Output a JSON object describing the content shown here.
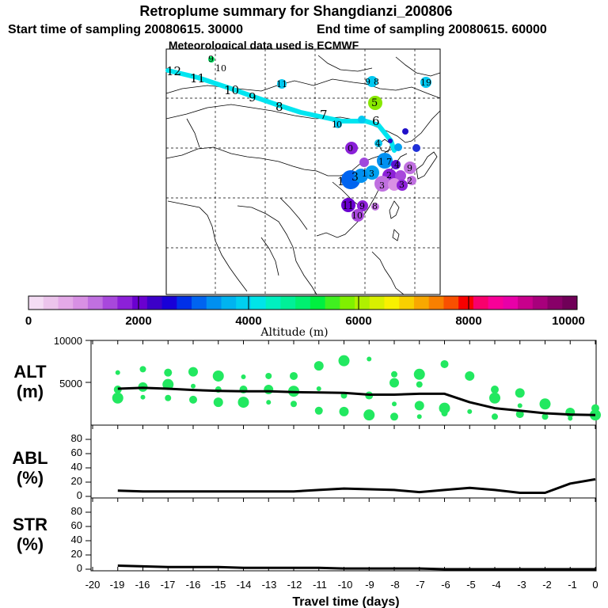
{
  "title": {
    "line1": "Retroplume summary for Shangdianzi_200806",
    "line2_start": "Start time of sampling 20080615. 30000",
    "line2_end": "End time of sampling 20080615. 60000",
    "line3": "Meteorological data used is ECMWF"
  },
  "map": {
    "labels": {
      "trajectory": [
        "12",
        "11",
        "10",
        "9",
        "8",
        "7",
        "6"
      ],
      "clusters": [
        "9",
        "10",
        "11",
        "19",
        "9",
        "8",
        "5",
        "1",
        "0",
        "4",
        "3",
        "1",
        "3",
        "1",
        "3",
        "2",
        "1",
        "0",
        "9",
        "7",
        "4",
        "2",
        "3",
        "1",
        "1",
        "9",
        "8",
        "10"
      ]
    },
    "colors": {
      "trajectory": "#00e5f0"
    }
  },
  "colorbar": {
    "labels": [
      "0",
      "2000",
      "4000",
      "6000",
      "8000",
      "10000"
    ],
    "title": "Altitude (m)",
    "colors": [
      "#f4dcf4",
      "#ecc4ec",
      "#e4aae8",
      "#d890e4",
      "#c070e0",
      "#a848dc",
      "#8c20d8",
      "#6a00d0",
      "#3c00c8",
      "#1800d8",
      "#0030e8",
      "#0064f0",
      "#0090f0",
      "#00b4f0",
      "#00d0f0",
      "#00e4e8",
      "#00f0c0",
      "#00f098",
      "#00f070",
      "#00f040",
      "#40f020",
      "#80f000",
      "#b0f000",
      "#d8f000",
      "#f8f000",
      "#f8d000",
      "#f8a800",
      "#f88000",
      "#f85000",
      "#f80000",
      "#f8006c",
      "#f80098",
      "#e800a8",
      "#c8008c",
      "#a8007c",
      "#880068",
      "#700058"
    ]
  },
  "panels": {
    "alt": {
      "label1": "ALT",
      "label2": "(m)",
      "yticks": [
        "10000",
        "5000"
      ]
    },
    "abl": {
      "label1": "ABL",
      "label2": "(%)",
      "yticks": [
        "80",
        "60",
        "40",
        "20",
        "0"
      ]
    },
    "str": {
      "label1": "STR",
      "label2": "(%)",
      "yticks": [
        "80",
        "60",
        "40",
        "20",
        "0"
      ]
    }
  },
  "xaxis": {
    "ticks": [
      "-20",
      "-19",
      "-16",
      "-17",
      "-16",
      "-15",
      "-14",
      "-13",
      "-12",
      "-11",
      "-10",
      "-9",
      "-8",
      "-7",
      "-6",
      "-5",
      "-4",
      "-3",
      "-2",
      "-1",
      "0"
    ],
    "title": "Travel time (days)"
  },
  "chart_data": [
    {
      "type": "line",
      "title": "ALT (m)",
      "xlabel": "Travel time (days)",
      "ylabel": "ALT (m)",
      "xlim": [
        -20,
        0
      ],
      "ylim": [
        0,
        10000
      ],
      "x": [
        -19,
        -18,
        -17,
        -16,
        -15,
        -14,
        -13,
        -12,
        -11,
        -10,
        -9,
        -8,
        -7,
        -6,
        -5,
        -4,
        -3,
        -2,
        -1,
        0
      ],
      "series": [
        {
          "name": "mean altitude",
          "values": [
            4300,
            4400,
            4300,
            4150,
            4050,
            4000,
            4000,
            3900,
            3850,
            3800,
            3600,
            3600,
            3700,
            3700,
            2700,
            2000,
            1700,
            1400,
            1250,
            1200
          ]
        },
        {
          "name": "cluster altitudes",
          "points": [
            [
              -19,
              6200
            ],
            [
              -19,
              4200
            ],
            [
              -19,
              3200
            ],
            [
              -18,
              6600
            ],
            [
              -18,
              4500
            ],
            [
              -18,
              3300
            ],
            [
              -17,
              6200
            ],
            [
              -17,
              4800
            ],
            [
              -17,
              3200
            ],
            [
              -16,
              6300
            ],
            [
              -16,
              4600
            ],
            [
              -16,
              3000
            ],
            [
              -15,
              5800
            ],
            [
              -15,
              4200
            ],
            [
              -15,
              2700
            ],
            [
              -14,
              5700
            ],
            [
              -14,
              4200
            ],
            [
              -14,
              2700
            ],
            [
              -13,
              5800
            ],
            [
              -13,
              4200
            ],
            [
              -13,
              2700
            ],
            [
              -12,
              5800
            ],
            [
              -12,
              4000
            ],
            [
              -12,
              2500
            ],
            [
              -11,
              7000
            ],
            [
              -11,
              4300
            ],
            [
              -11,
              1700
            ],
            [
              -10,
              7600
            ],
            [
              -10,
              3500
            ],
            [
              -10,
              1600
            ],
            [
              -9,
              7800
            ],
            [
              -9,
              3500
            ],
            [
              -9,
              1200
            ],
            [
              -8,
              6000
            ],
            [
              -8,
              5000
            ],
            [
              -8,
              2500
            ],
            [
              -8,
              1000
            ],
            [
              -7,
              6000
            ],
            [
              -7,
              4800
            ],
            [
              -7,
              2300
            ],
            [
              -7,
              1000
            ],
            [
              -6,
              7200
            ],
            [
              -6,
              2000
            ],
            [
              -6,
              1400
            ],
            [
              -5,
              5800
            ],
            [
              -5,
              1600
            ],
            [
              -4,
              4200
            ],
            [
              -4,
              3200
            ],
            [
              -4,
              1000
            ],
            [
              -3,
              3800
            ],
            [
              -3,
              2300
            ],
            [
              -3,
              1300
            ],
            [
              -2,
              2500
            ],
            [
              -2,
              1000
            ],
            [
              -1,
              1500
            ],
            [
              -1,
              800
            ],
            [
              0,
              2000
            ],
            [
              0,
              1200
            ]
          ]
        }
      ]
    },
    {
      "type": "line",
      "title": "ABL (%)",
      "xlabel": "Travel time (days)",
      "ylabel": "ABL (%)",
      "xlim": [
        -20,
        0
      ],
      "ylim": [
        0,
        100
      ],
      "x": [
        -19,
        -18,
        -17,
        -16,
        -15,
        -14,
        -13,
        -12,
        -11,
        -10,
        -9,
        -8,
        -7,
        -6,
        -5,
        -4,
        -3,
        -2,
        -1,
        0
      ],
      "values": [
        8,
        7,
        7,
        7,
        7,
        7,
        7,
        7,
        9,
        11,
        10,
        9,
        6,
        9,
        12,
        9,
        5,
        5,
        18,
        24
      ]
    },
    {
      "type": "line",
      "title": "STR (%)",
      "xlabel": "Travel time (days)",
      "ylabel": "STR (%)",
      "xlim": [
        -20,
        0
      ],
      "ylim": [
        0,
        100
      ],
      "x": [
        -19,
        -18,
        -17,
        -16,
        -15,
        -14,
        -13,
        -12,
        -11,
        -10,
        -9,
        -8,
        -7,
        -6,
        -5,
        -4,
        -3,
        -2,
        -1,
        0
      ],
      "values": [
        5,
        4,
        3,
        3,
        3,
        2,
        2,
        2,
        2,
        1,
        1,
        1,
        1,
        0,
        0,
        0,
        0,
        0,
        0,
        0
      ]
    }
  ]
}
